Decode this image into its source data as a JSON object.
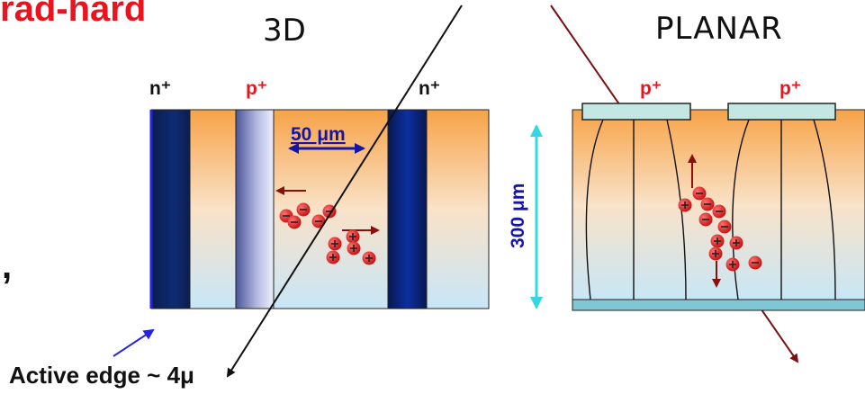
{
  "title": "rad-hard",
  "left_panel": {
    "title": "3D",
    "labels": {
      "n_left": "n⁺",
      "p": "p⁺",
      "n_right": "n⁺"
    },
    "pitch_label": "50 μm",
    "charges": {
      "electrons": 5,
      "holes": 5
    },
    "colors": {
      "n_electrode": "#0f2a63",
      "p_electrode": "#5e68a8",
      "bulk_top": "#f7a348",
      "bulk_bottom": "#c8e6f7",
      "charge": "#e01a1a",
      "arrow": "#8a1010"
    }
  },
  "thickness_label": "300 μm",
  "right_panel": {
    "title": "PLANAR",
    "labels": {
      "p_left": "p⁺",
      "p_right": "p⁺"
    },
    "charges": {
      "electrons": 5,
      "holes": 5
    }
  },
  "comma": ",",
  "active_edge_label": "Active edge ~ 4μ",
  "colors": {
    "title": "#e8141e",
    "track_dark": "#111111",
    "track_red": "#7a1010",
    "dim_arrow": "#30d8e6",
    "edge_arrow": "#2424e0"
  }
}
